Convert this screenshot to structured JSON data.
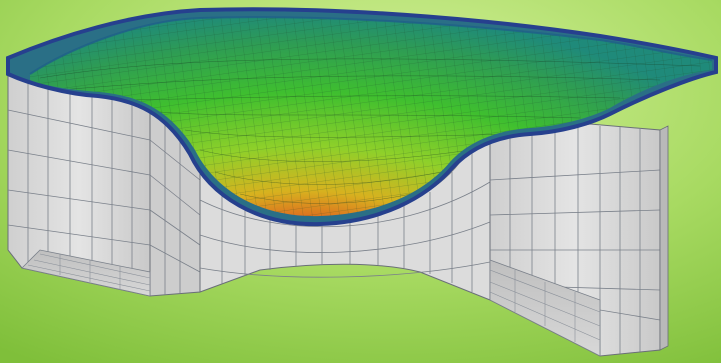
{
  "colors": {
    "background_light": "#c9ec8c",
    "background_dark": "#7fbf3a",
    "wall_fill": "#d9d9d9",
    "wall_line": "#5f6b7a",
    "top_surface": "#2a6f86",
    "surface_edge": "#26408e",
    "deformation_low": "#1f8a7a",
    "deformation_mid_green": "#3fbf2f",
    "deformation_mid_yellow": "#d4c81e",
    "deformation_high": "#d8261f"
  },
  "status": {
    "line1": "",
    "line2": ""
  }
}
